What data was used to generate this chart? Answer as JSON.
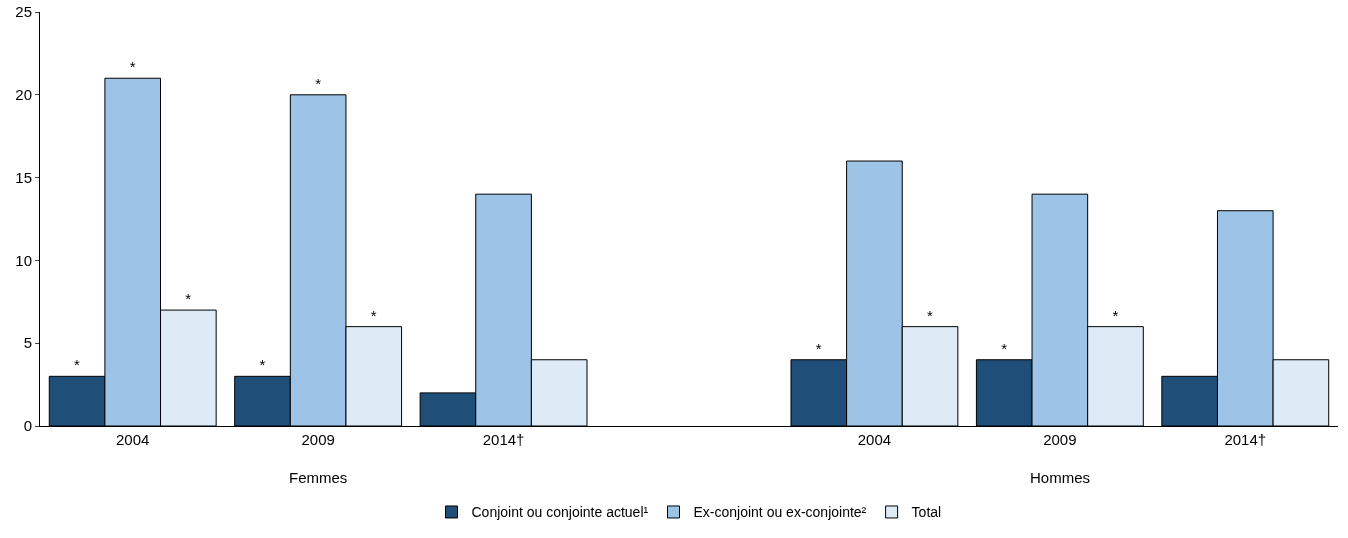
{
  "chart_data": {
    "type": "bar",
    "categories": [
      "2004",
      "2009",
      "2014†",
      null,
      "2004",
      "2009",
      "2014†"
    ],
    "series": [
      {
        "name": "Conjoint ou conjointe actuel¹",
        "color": "#1f4e79",
        "values": [
          3,
          3,
          2,
          null,
          4,
          4,
          3
        ],
        "value_labels": [
          "*",
          "*",
          null,
          null,
          "*",
          "*",
          null
        ]
      },
      {
        "name": "Ex-conjoint ou ex-conjointe²",
        "color": "#9dc3e6",
        "values": [
          21,
          20,
          14,
          null,
          16,
          14,
          13
        ],
        "value_labels": [
          "*",
          "*",
          null,
          null,
          null,
          null,
          null
        ]
      },
      {
        "name": "Total",
        "color": "#deebf7",
        "values": [
          7,
          6,
          4,
          null,
          6,
          6,
          4
        ],
        "value_labels": [
          "*",
          "*",
          null,
          null,
          "*",
          "*",
          null
        ]
      }
    ],
    "annotations": [
      "Femmes",
      "Hommes"
    ],
    "ylim": [
      0,
      25
    ],
    "yticks": [
      0,
      5,
      10,
      15,
      20,
      25
    ],
    "grid": false,
    "legend": "bottom"
  }
}
